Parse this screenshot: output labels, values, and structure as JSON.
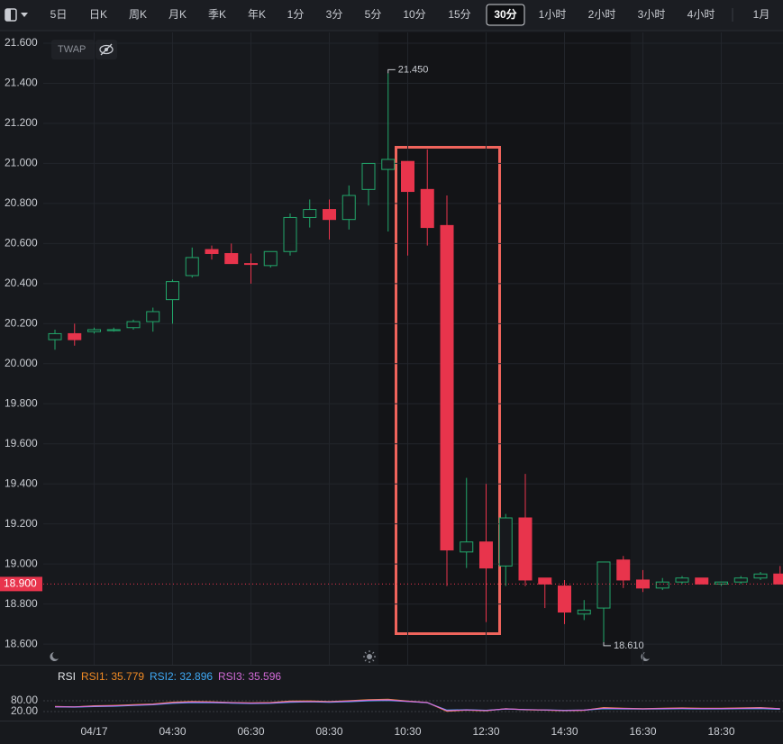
{
  "toolbar": {
    "items": [
      "5日",
      "日K",
      "周K",
      "月K",
      "季K",
      "年K",
      "1分",
      "3分",
      "5分",
      "10分",
      "15分",
      "30分",
      "1小时",
      "2小时",
      "3小时",
      "4小时",
      "1月"
    ],
    "active": 11
  },
  "indicator_label": "TWAP",
  "chart_data": [
    {
      "type": "candlestick",
      "categories": [
        null,
        null,
        "04/17",
        null,
        null,
        null,
        "04:30",
        null,
        null,
        null,
        "06:30",
        null,
        null,
        null,
        "08:30",
        null,
        null,
        null,
        "10:30",
        null,
        null,
        null,
        "12:30",
        null,
        null,
        null,
        "14:30",
        null,
        null,
        null,
        "16:30",
        null,
        null,
        null,
        "18:30",
        null,
        null,
        null
      ],
      "open": [
        20.12,
        20.15,
        20.16,
        20.165,
        20.18,
        20.21,
        20.32,
        20.44,
        20.57,
        20.55,
        20.5,
        20.49,
        20.56,
        20.73,
        20.77,
        20.72,
        20.87,
        20.97,
        21.01,
        20.87,
        20.69,
        19.06,
        19.11,
        18.99,
        19.23,
        18.93,
        18.89,
        18.75,
        18.78,
        19.02,
        18.92,
        18.88,
        18.91,
        18.93,
        18.9,
        18.91,
        18.93,
        18.95
      ],
      "high": [
        20.17,
        20.2,
        20.18,
        20.18,
        20.22,
        20.28,
        20.42,
        20.58,
        20.59,
        20.6,
        20.55,
        20.56,
        20.75,
        20.82,
        20.82,
        20.89,
        21.0,
        21.45,
        21.01,
        21.07,
        20.84,
        19.43,
        19.4,
        19.25,
        19.45,
        18.93,
        18.92,
        18.82,
        19.01,
        19.04,
        18.97,
        18.93,
        18.94,
        18.93,
        18.91,
        18.94,
        18.96,
        18.99
      ],
      "low": [
        20.07,
        20.09,
        20.15,
        20.16,
        20.17,
        20.16,
        20.2,
        20.43,
        20.52,
        20.5,
        20.4,
        20.48,
        20.54,
        20.68,
        20.62,
        20.67,
        20.79,
        20.66,
        20.54,
        20.59,
        18.89,
        18.98,
        18.71,
        18.89,
        18.89,
        18.78,
        18.7,
        18.72,
        18.61,
        18.88,
        18.86,
        18.87,
        18.9,
        18.9,
        18.89,
        18.9,
        18.92,
        18.9
      ],
      "close": [
        20.15,
        20.12,
        20.17,
        20.17,
        20.21,
        20.26,
        20.41,
        20.53,
        20.55,
        20.5,
        20.5,
        20.56,
        20.73,
        20.77,
        20.72,
        20.84,
        21.0,
        21.02,
        20.86,
        20.68,
        19.07,
        19.11,
        18.98,
        19.23,
        18.92,
        18.9,
        18.76,
        18.77,
        19.01,
        18.92,
        18.88,
        18.91,
        18.93,
        18.9,
        18.91,
        18.93,
        18.95,
        18.9
      ],
      "up_color": "#22a86b",
      "down_color": "#e8344c",
      "ylim": [
        18.497,
        21.654
      ],
      "yticks": [
        {
          "value": 21.6,
          "label": "21.600"
        },
        {
          "value": 21.4,
          "label": "21.400"
        },
        {
          "value": 21.2,
          "label": "21.200"
        },
        {
          "value": 21.0,
          "label": "21.000"
        },
        {
          "value": 20.8,
          "label": "20.800"
        },
        {
          "value": 20.6,
          "label": "20.600"
        },
        {
          "value": 20.4,
          "label": "20.400"
        },
        {
          "value": 20.2,
          "label": "20.200"
        },
        {
          "value": 20.0,
          "label": "20.000"
        },
        {
          "value": 19.8,
          "label": "19.800"
        },
        {
          "value": 19.6,
          "label": "19.600"
        },
        {
          "value": 19.4,
          "label": "19.400"
        },
        {
          "value": 19.2,
          "label": "19.200"
        },
        {
          "value": 19.0,
          "label": "19.000"
        },
        {
          "value": 18.8,
          "label": "18.800"
        },
        {
          "value": 18.6,
          "label": "18.600"
        }
      ],
      "grid": true,
      "last_price": {
        "value": 18.9,
        "label": "18.900"
      },
      "annotations": [
        {
          "value": 21.45,
          "label": "21.450"
        },
        {
          "value": 18.61,
          "label": "18.610"
        }
      ]
    },
    {
      "type": "line",
      "title": "RSI",
      "series": [
        {
          "name": "RSI1: 35.779",
          "color": "#f08a24",
          "values": [
            48,
            46,
            52,
            54,
            58,
            62,
            72,
            76,
            74,
            70,
            68,
            70,
            78,
            79,
            76,
            80,
            86,
            88,
            78,
            70,
            22,
            28,
            24,
            36,
            30,
            28,
            25,
            27,
            42,
            38,
            36,
            38,
            40,
            38,
            38,
            40,
            42,
            35.779
          ]
        },
        {
          "name": "RSI2: 32.896",
          "color": "#3fa9f5",
          "values": [
            46,
            45,
            48,
            50,
            54,
            58,
            66,
            70,
            69,
            67,
            65,
            66,
            72,
            74,
            72,
            75,
            80,
            82,
            76,
            69,
            28,
            30,
            27,
            34,
            31,
            29,
            27,
            28,
            36,
            35,
            34,
            35,
            36,
            35,
            35,
            36,
            37,
            32.896
          ]
        },
        {
          "name": "RSI3: 35.596",
          "color": "#d36bd8",
          "values": [
            47,
            46,
            50,
            52,
            56,
            60,
            69,
            73,
            72,
            69,
            67,
            68,
            75,
            76,
            74,
            78,
            83,
            85,
            77,
            70,
            25,
            29,
            26,
            35,
            31,
            29,
            26,
            28,
            39,
            37,
            35,
            37,
            38,
            37,
            37,
            38,
            40,
            35.596
          ]
        }
      ],
      "ylim": [
        0,
        100
      ],
      "yticks": [
        {
          "value": 80,
          "label": "80.00"
        },
        {
          "value": 20,
          "label": "20.00"
        }
      ]
    }
  ]
}
